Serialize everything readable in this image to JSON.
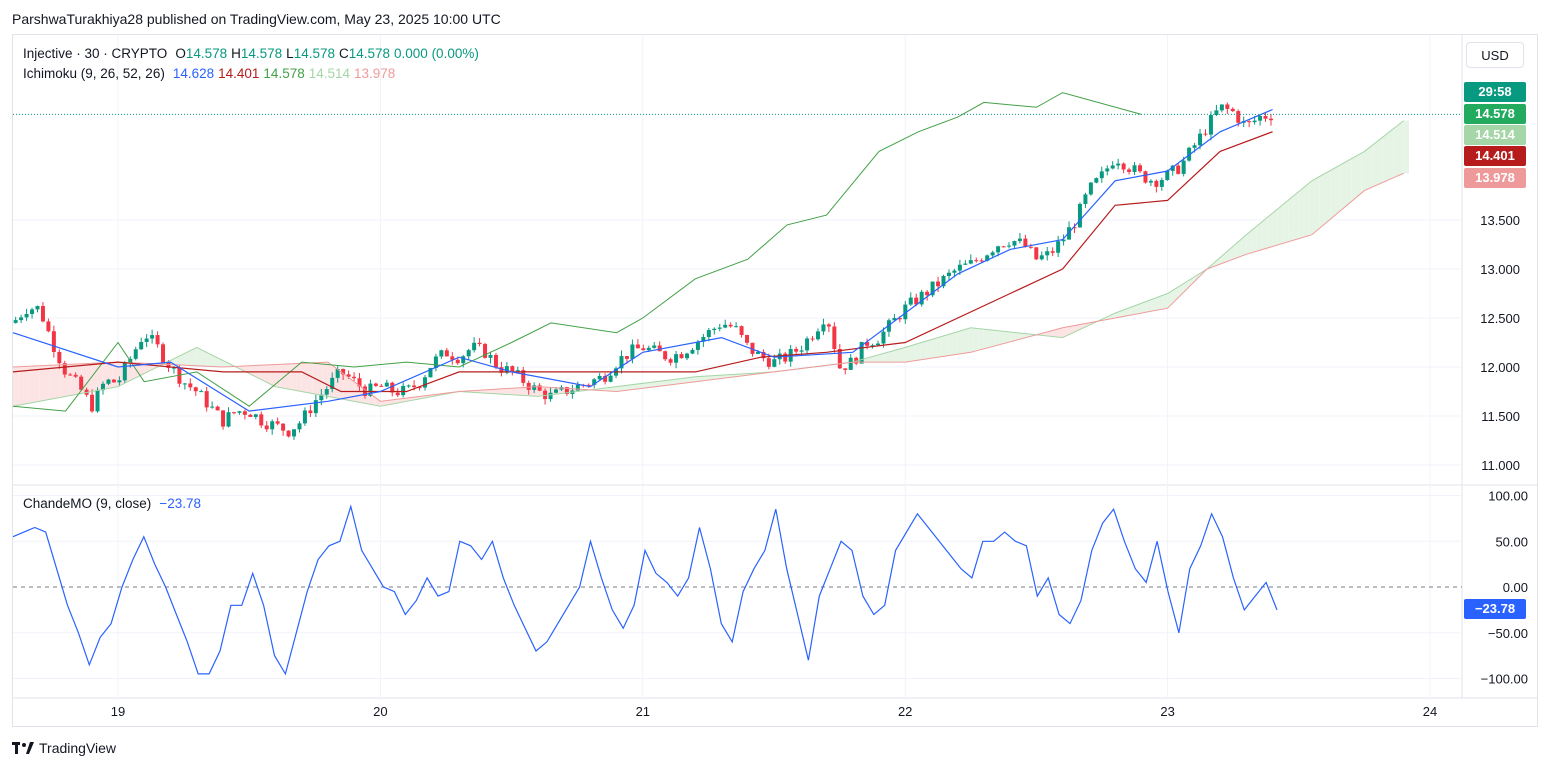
{
  "header": {
    "text": "ParshwaTurakhiya28 published on TradingView.com, May 23, 2025 10:00 UTC"
  },
  "legend": {
    "symbol": "Injective · 30 · CRYPTO",
    "o_label": "O",
    "o": "14.578",
    "h_label": "H",
    "h": "14.578",
    "l_label": "L",
    "l": "14.578",
    "c_label": "C",
    "c": "14.578",
    "change": "0.000 (0.00%)",
    "ichimoku_label": "Ichimoku (9, 26, 52, 26)",
    "ichimoku_values": [
      "14.628",
      "14.401",
      "14.578",
      "14.514",
      "13.978"
    ],
    "cmo_label": "ChandeMO (9, close)",
    "cmo_value": "−23.78"
  },
  "currency_button": "USD",
  "price_tags": {
    "countdown": "29:58",
    "last": "14.578",
    "span_a": "14.514",
    "kijun": "14.401",
    "span_b": "13.978",
    "cmo": "−23.78"
  },
  "colors": {
    "up": "#089981",
    "down": "#f23645",
    "tenkan": "#2962ff",
    "kijun": "#b71c1c",
    "chikou": "#43a047",
    "span_a": "#a5d6a7",
    "span_b": "#ef9a9a",
    "cloud_bull": "#e6f4e6",
    "cloud_bear": "#fde4e4",
    "cmo": "#2962ff"
  },
  "footer": {
    "brand": "TradingView"
  },
  "chart_data": [
    {
      "type": "candlestick",
      "title": "Injective · 30 · CRYPTO",
      "x_ticks": [
        "19",
        "20",
        "21",
        "22",
        "23",
        "24"
      ],
      "y_ticks": [
        "11.000",
        "11.500",
        "12.000",
        "12.500",
        "13.000",
        "13.500"
      ],
      "ylim": [
        10.95,
        14.95
      ],
      "xlim_days": [
        18.6,
        24.4
      ],
      "last_price": 14.578,
      "price_points": [
        [
          18.6,
          12.45
        ],
        [
          18.65,
          12.6
        ],
        [
          18.7,
          12.6
        ],
        [
          18.75,
          12.25
        ],
        [
          18.8,
          11.95
        ],
        [
          18.85,
          11.8
        ],
        [
          18.9,
          11.6
        ],
        [
          18.95,
          11.85
        ],
        [
          19.0,
          11.85
        ],
        [
          19.05,
          12.1
        ],
        [
          19.1,
          12.35
        ],
        [
          19.15,
          12.2
        ],
        [
          19.2,
          12.0
        ],
        [
          19.25,
          11.85
        ],
        [
          19.3,
          11.75
        ],
        [
          19.35,
          11.6
        ],
        [
          19.4,
          11.45
        ],
        [
          19.45,
          11.55
        ],
        [
          19.5,
          11.55
        ],
        [
          19.55,
          11.45
        ],
        [
          19.6,
          11.4
        ],
        [
          19.65,
          11.35
        ],
        [
          19.7,
          11.45
        ],
        [
          19.75,
          11.65
        ],
        [
          19.8,
          11.8
        ],
        [
          19.85,
          11.95
        ],
        [
          19.9,
          11.85
        ],
        [
          19.95,
          11.75
        ],
        [
          20.0,
          11.8
        ],
        [
          20.05,
          11.75
        ],
        [
          20.1,
          11.75
        ],
        [
          20.15,
          11.85
        ],
        [
          20.2,
          12.05
        ],
        [
          20.25,
          12.15
        ],
        [
          20.3,
          12.1
        ],
        [
          20.35,
          12.2
        ],
        [
          20.4,
          12.15
        ],
        [
          20.45,
          12.0
        ],
        [
          20.5,
          11.95
        ],
        [
          20.55,
          11.85
        ],
        [
          20.6,
          11.75
        ],
        [
          20.65,
          11.7
        ],
        [
          20.7,
          11.75
        ],
        [
          20.75,
          11.8
        ],
        [
          20.8,
          11.85
        ],
        [
          20.85,
          11.9
        ],
        [
          20.9,
          12.05
        ],
        [
          20.95,
          12.15
        ],
        [
          21.0,
          12.2
        ],
        [
          21.05,
          12.15
        ],
        [
          21.1,
          12.1
        ],
        [
          21.15,
          12.15
        ],
        [
          21.2,
          12.25
        ],
        [
          21.25,
          12.35
        ],
        [
          21.3,
          12.45
        ],
        [
          21.35,
          12.4
        ],
        [
          21.4,
          12.2
        ],
        [
          21.45,
          12.1
        ],
        [
          21.5,
          12.05
        ],
        [
          21.55,
          12.1
        ],
        [
          21.6,
          12.2
        ],
        [
          21.65,
          12.35
        ],
        [
          21.7,
          12.55
        ],
        [
          21.75,
          12.0
        ],
        [
          21.8,
          12.05
        ],
        [
          21.85,
          12.25
        ],
        [
          21.9,
          12.3
        ],
        [
          21.95,
          12.45
        ],
        [
          22.0,
          12.6
        ],
        [
          22.05,
          12.7
        ],
        [
          22.1,
          12.8
        ],
        [
          22.15,
          12.9
        ],
        [
          22.2,
          13.0
        ],
        [
          22.25,
          13.05
        ],
        [
          22.3,
          13.15
        ],
        [
          22.35,
          13.25
        ],
        [
          22.4,
          13.3
        ],
        [
          22.45,
          13.25
        ],
        [
          22.5,
          13.1
        ],
        [
          22.55,
          13.15
        ],
        [
          22.6,
          13.3
        ],
        [
          22.65,
          13.5
        ],
        [
          22.7,
          13.8
        ],
        [
          22.75,
          13.95
        ],
        [
          22.8,
          14.15
        ],
        [
          22.85,
          14.05
        ],
        [
          22.9,
          13.95
        ],
        [
          22.95,
          13.9
        ],
        [
          23.0,
          13.95
        ],
        [
          23.05,
          14.05
        ],
        [
          23.1,
          14.25
        ],
        [
          23.15,
          14.45
        ],
        [
          23.2,
          14.65
        ],
        [
          23.25,
          14.6
        ],
        [
          23.3,
          14.45
        ],
        [
          23.35,
          14.55
        ],
        [
          23.4,
          14.578
        ]
      ],
      "tenkan": [
        [
          18.6,
          12.35
        ],
        [
          19.0,
          12.0
        ],
        [
          19.2,
          12.05
        ],
        [
          19.5,
          11.55
        ],
        [
          19.8,
          11.65
        ],
        [
          20.0,
          11.75
        ],
        [
          20.3,
          12.1
        ],
        [
          20.5,
          11.95
        ],
        [
          20.8,
          11.8
        ],
        [
          21.0,
          12.15
        ],
        [
          21.3,
          12.3
        ],
        [
          21.5,
          12.1
        ],
        [
          21.8,
          12.15
        ],
        [
          22.0,
          12.55
        ],
        [
          22.2,
          12.95
        ],
        [
          22.4,
          13.2
        ],
        [
          22.6,
          13.3
        ],
        [
          22.8,
          13.9
        ],
        [
          23.0,
          14.0
        ],
        [
          23.2,
          14.4
        ],
        [
          23.4,
          14.628
        ]
      ],
      "kijun": [
        [
          18.6,
          11.95
        ],
        [
          19.0,
          12.05
        ],
        [
          19.4,
          11.95
        ],
        [
          19.7,
          11.95
        ],
        [
          19.85,
          11.75
        ],
        [
          20.1,
          11.75
        ],
        [
          20.3,
          11.95
        ],
        [
          20.6,
          11.95
        ],
        [
          20.9,
          11.95
        ],
        [
          21.2,
          11.95
        ],
        [
          21.45,
          12.1
        ],
        [
          21.7,
          12.15
        ],
        [
          22.0,
          12.25
        ],
        [
          22.4,
          12.75
        ],
        [
          22.6,
          13.0
        ],
        [
          22.8,
          13.65
        ],
        [
          23.0,
          13.7
        ],
        [
          23.2,
          14.2
        ],
        [
          23.4,
          14.401
        ]
      ],
      "chikou": [
        [
          18.6,
          11.6
        ],
        [
          18.8,
          11.55
        ],
        [
          19.0,
          12.25
        ],
        [
          19.1,
          11.85
        ],
        [
          19.3,
          11.95
        ],
        [
          19.5,
          11.6
        ],
        [
          19.7,
          12.05
        ],
        [
          19.9,
          12.0
        ],
        [
          20.1,
          12.05
        ],
        [
          20.3,
          12.0
        ],
        [
          20.5,
          12.25
        ],
        [
          20.65,
          12.45
        ],
        [
          20.9,
          12.35
        ],
        [
          21.0,
          12.5
        ],
        [
          21.2,
          12.9
        ],
        [
          21.4,
          13.1
        ],
        [
          21.55,
          13.45
        ],
        [
          21.7,
          13.55
        ],
        [
          21.9,
          14.2
        ],
        [
          22.05,
          14.4
        ],
        [
          22.2,
          14.55
        ],
        [
          22.3,
          14.7
        ],
        [
          22.5,
          14.65
        ],
        [
          22.6,
          14.8
        ],
        [
          22.9,
          14.578
        ]
      ],
      "span_a": [
        [
          18.6,
          11.6
        ],
        [
          19.0,
          11.8
        ],
        [
          19.3,
          12.2
        ],
        [
          19.6,
          11.8
        ],
        [
          20.0,
          11.6
        ],
        [
          20.3,
          11.75
        ],
        [
          20.6,
          11.7
        ],
        [
          20.9,
          11.8
        ],
        [
          21.2,
          11.9
        ],
        [
          21.5,
          11.95
        ],
        [
          21.8,
          12.05
        ],
        [
          22.0,
          12.2
        ],
        [
          22.25,
          12.4
        ],
        [
          22.6,
          12.3
        ],
        [
          22.8,
          12.55
        ],
        [
          23.0,
          12.75
        ],
        [
          23.15,
          13.0
        ],
        [
          23.3,
          13.35
        ],
        [
          23.55,
          13.9
        ],
        [
          23.75,
          14.2
        ],
        [
          23.9,
          14.514
        ]
      ],
      "span_b": [
        [
          18.6,
          12.0
        ],
        [
          19.0,
          12.05
        ],
        [
          19.4,
          12.0
        ],
        [
          19.8,
          12.05
        ],
        [
          20.0,
          11.65
        ],
        [
          20.3,
          11.75
        ],
        [
          20.6,
          11.8
        ],
        [
          20.9,
          11.75
        ],
        [
          21.2,
          11.85
        ],
        [
          21.5,
          11.95
        ],
        [
          21.8,
          12.05
        ],
        [
          22.0,
          12.05
        ],
        [
          22.25,
          12.15
        ],
        [
          22.6,
          12.4
        ],
        [
          22.8,
          12.5
        ],
        [
          23.0,
          12.6
        ],
        [
          23.15,
          13.0
        ],
        [
          23.3,
          13.15
        ],
        [
          23.55,
          13.35
        ],
        [
          23.75,
          13.8
        ],
        [
          23.9,
          13.978
        ]
      ]
    },
    {
      "type": "line",
      "title": "ChandeMO (9, close)",
      "y_ticks": [
        "100.00",
        "50.00",
        "0.00",
        "−50.00",
        "−100.00"
      ],
      "ylim": [
        -110,
        110
      ],
      "values": [
        55,
        60,
        65,
        60,
        20,
        -20,
        -50,
        -85,
        -55,
        -40,
        0,
        30,
        55,
        25,
        0,
        -30,
        -60,
        -95,
        -95,
        -70,
        -20,
        -20,
        15,
        -20,
        -75,
        -95,
        -50,
        -5,
        30,
        45,
        50,
        88,
        40,
        20,
        0,
        -5,
        -30,
        -15,
        10,
        -10,
        -5,
        50,
        45,
        30,
        50,
        10,
        -20,
        -45,
        -70,
        -60,
        -40,
        -20,
        0,
        50,
        10,
        -25,
        -45,
        -20,
        40,
        15,
        5,
        -10,
        10,
        65,
        20,
        -40,
        -60,
        -5,
        20,
        40,
        85,
        20,
        -30,
        -80,
        -10,
        20,
        50,
        40,
        -10,
        -30,
        -20,
        40,
        60,
        80,
        65,
        50,
        35,
        20,
        10,
        50,
        50,
        60,
        50,
        45,
        -10,
        10,
        -30,
        -40,
        -15,
        40,
        70,
        85,
        50,
        20,
        5,
        50,
        -5,
        -50,
        20,
        45,
        80,
        55,
        10,
        -25,
        -10,
        5,
        -25
      ]
    }
  ]
}
